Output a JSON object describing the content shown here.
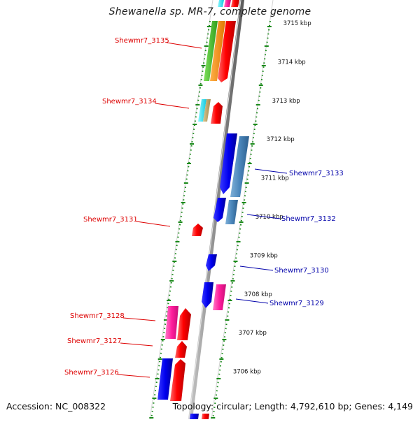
{
  "title": "Shewanella sp. MR-7, complete genome",
  "accession": "Accession: NC_008322",
  "topology": "Topology: circular; Length: 4,792,610 bp; Genes: 4,149",
  "colors": {
    "forward_label": "#dd0000",
    "reverse_label": "#0000aa",
    "tick_green": "#1a8a1a",
    "backbone": "#8c8c8c",
    "forward_gene": "#ff0000",
    "reverse_gene": "#0000ee"
  },
  "scale_ticks": [
    {
      "label": "3715 kbp"
    },
    {
      "label": "3714 kbp"
    },
    {
      "label": "3713 kbp"
    },
    {
      "label": "3712 kbp"
    },
    {
      "label": "3711 kbp"
    },
    {
      "label": "3710 kbp"
    },
    {
      "label": "3709 kbp"
    },
    {
      "label": "3708 kbp"
    },
    {
      "label": "3707 kbp"
    },
    {
      "label": "3706 kbp"
    }
  ],
  "gene_labels": [
    {
      "name": "Shewmr7_3135",
      "strand": "forward"
    },
    {
      "name": "Shewmr7_3134",
      "strand": "forward"
    },
    {
      "name": "Shewmr7_3133",
      "strand": "reverse"
    },
    {
      "name": "Shewmr7_3132",
      "strand": "reverse"
    },
    {
      "name": "Shewmr7_3131",
      "strand": "forward"
    },
    {
      "name": "Shewmr7_3130",
      "strand": "reverse"
    },
    {
      "name": "Shewmr7_3129",
      "strand": "reverse"
    },
    {
      "name": "Shewmr7_3128",
      "strand": "forward"
    },
    {
      "name": "Shewmr7_3127",
      "strand": "forward"
    },
    {
      "name": "Shewmr7_3126",
      "strand": "forward"
    }
  ]
}
